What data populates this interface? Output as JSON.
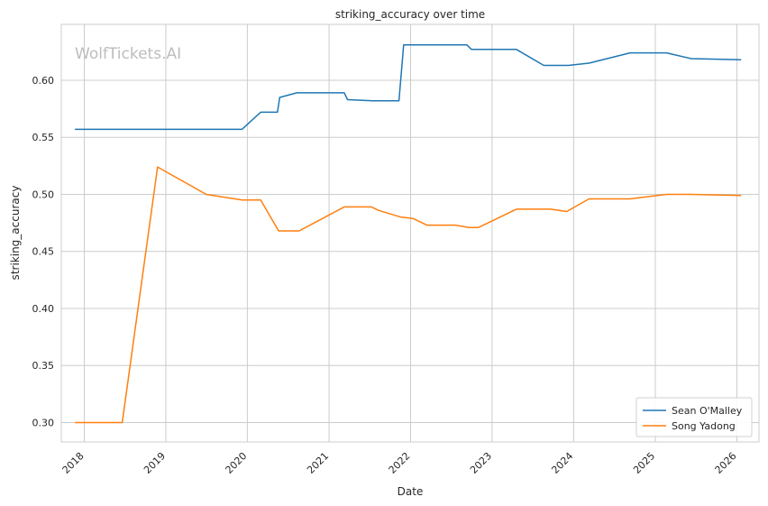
{
  "chart_data": {
    "type": "line",
    "title": "striking_accuracy over time",
    "xlabel": "Date",
    "ylabel": "striking_accuracy",
    "watermark": "WolfTickets.AI",
    "xlim": [
      "2017-09-20",
      "2026-04-10"
    ],
    "ylim": [
      0.283,
      0.649
    ],
    "yticks": [
      0.3,
      0.35,
      0.4,
      0.45,
      0.5,
      0.55,
      0.6
    ],
    "ytick_labels": [
      "0.30",
      "0.35",
      "0.40",
      "0.45",
      "0.50",
      "0.55",
      "0.60"
    ],
    "xticks": [
      "2018-01-01",
      "2019-01-01",
      "2020-01-01",
      "2021-01-01",
      "2022-01-01",
      "2023-01-01",
      "2024-01-01",
      "2025-01-01",
      "2026-01-01"
    ],
    "xtick_labels": [
      "2018",
      "2019",
      "2020",
      "2021",
      "2022",
      "2023",
      "2024",
      "2025",
      "2026"
    ],
    "grid": true,
    "legend_position": "bottom-right",
    "series": [
      {
        "name": "Sean O'Malley",
        "color": "#1f77b4",
        "points": [
          [
            "2017-11-20",
            0.557
          ],
          [
            "2019-12-08",
            0.557
          ],
          [
            "2020-03-01",
            0.572
          ],
          [
            "2020-05-15",
            0.572
          ],
          [
            "2020-05-25",
            0.585
          ],
          [
            "2020-08-10",
            0.589
          ],
          [
            "2021-03-10",
            0.589
          ],
          [
            "2021-03-25",
            0.583
          ],
          [
            "2021-07-15",
            0.582
          ],
          [
            "2021-11-10",
            0.582
          ],
          [
            "2021-12-01",
            0.631
          ],
          [
            "2022-09-10",
            0.631
          ],
          [
            "2022-10-01",
            0.627
          ],
          [
            "2023-04-20",
            0.627
          ],
          [
            "2023-08-20",
            0.613
          ],
          [
            "2023-12-10",
            0.613
          ],
          [
            "2024-03-10",
            0.615
          ],
          [
            "2024-09-10",
            0.624
          ],
          [
            "2025-02-20",
            0.624
          ],
          [
            "2025-06-10",
            0.619
          ],
          [
            "2026-01-20",
            0.618
          ]
        ]
      },
      {
        "name": "Song Yadong",
        "color": "#ff7f0e",
        "points": [
          [
            "2017-11-20",
            0.3
          ],
          [
            "2018-06-20",
            0.3
          ],
          [
            "2018-11-25",
            0.524
          ],
          [
            "2019-07-01",
            0.5
          ],
          [
            "2019-12-10",
            0.495
          ],
          [
            "2020-03-01",
            0.495
          ],
          [
            "2020-05-20",
            0.468
          ],
          [
            "2020-08-20",
            0.468
          ],
          [
            "2021-03-10",
            0.489
          ],
          [
            "2021-07-10",
            0.489
          ],
          [
            "2021-08-10",
            0.486
          ],
          [
            "2021-11-20",
            0.48
          ],
          [
            "2022-01-10",
            0.479
          ],
          [
            "2022-03-15",
            0.473
          ],
          [
            "2022-07-20",
            0.473
          ],
          [
            "2022-09-20",
            0.471
          ],
          [
            "2022-11-01",
            0.471
          ],
          [
            "2023-04-20",
            0.487
          ],
          [
            "2023-09-20",
            0.487
          ],
          [
            "2023-12-01",
            0.485
          ],
          [
            "2024-03-10",
            0.496
          ],
          [
            "2024-09-10",
            0.496
          ],
          [
            "2025-02-20",
            0.5
          ],
          [
            "2025-06-10",
            0.5
          ],
          [
            "2026-01-20",
            0.499
          ]
        ]
      }
    ]
  }
}
